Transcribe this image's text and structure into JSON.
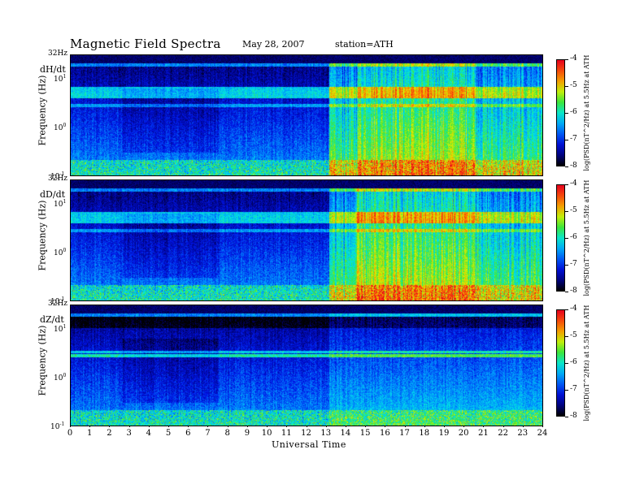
{
  "chart_data": {
    "type": "heatmap",
    "title": "Magnetic  Field  Spectra",
    "date": "May 28, 2007",
    "station": "station=ATH",
    "xlabel": "Universal Time",
    "xlim": [
      0,
      24
    ],
    "x_ticks": [
      "0",
      "1",
      "2",
      "3",
      "4",
      "5",
      "6",
      "7",
      "8",
      "9",
      "10",
      "11",
      "12",
      "13",
      "14",
      "15",
      "16",
      "17",
      "18",
      "19",
      "20",
      "21",
      "22",
      "23",
      "24"
    ],
    "ylabel": "Frequency  (Hz)",
    "y_scale": "log",
    "ylim": [
      0.1,
      32
    ],
    "y_ticks": {
      "top": "32Hz",
      "ten_base": "10",
      "ten_exp": "1",
      "one_base": "10",
      "one_exp": "0",
      "tenth": "10",
      "tenth_exp": "-1"
    },
    "colorbar": {
      "label": "log(PSD(nT^2/Hz) at 5.5Hz at ATH",
      "range": [
        -8,
        -4
      ],
      "ticks": [
        "-4",
        "-5",
        "-6",
        "-7",
        "-8"
      ]
    },
    "panels": [
      {
        "label": "dH/dt",
        "disturbed_from_hour": 13.1,
        "line_frequencies_hz": [
          5.5,
          3.0,
          18
        ]
      },
      {
        "label": "dD/dt",
        "disturbed_from_hour": 13.1,
        "line_frequencies_hz": [
          5.5,
          3.0,
          18
        ]
      },
      {
        "label": "dZ/dt",
        "disturbed_from_hour": 13.1,
        "line_frequencies_hz": [
          5.5,
          3.0,
          18
        ]
      }
    ]
  }
}
